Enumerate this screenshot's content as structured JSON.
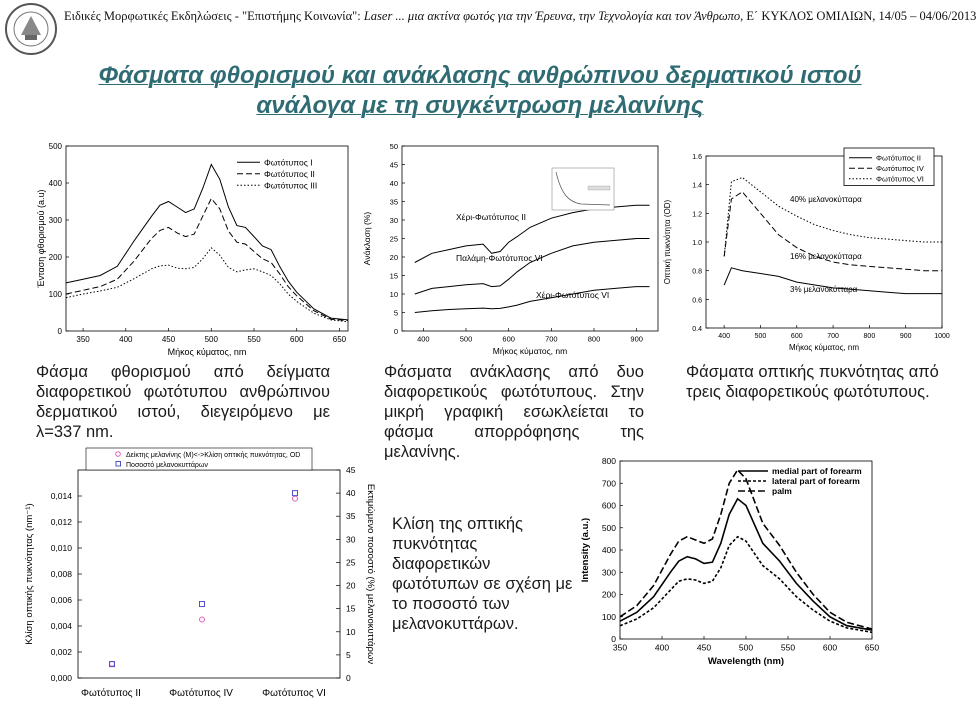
{
  "header": {
    "prefix": "Ειδικές Μορφωτικές Εκδηλώσεις - \"Επιστήμης Κοινωνία\": ",
    "italic": "Laser ... μια ακτίνα φωτός για την Έρευνα, την Τεχνολογία και τον Άνθρωπο",
    "suffix": ", Ε΄ ΚΥΚΛΟΣ ΟΜΙΛΙΩΝ, 14/05 – 04/06/2013"
  },
  "title": {
    "line1": "Φάσματα φθορισμού και ανάκλασης ανθρώπινου δερματικού ιστού",
    "line2": "ανάλογα με τη συγκέντρωση μελανίνης"
  },
  "captions": {
    "fluorescence": "Φάσμα φθορισμού από δείγματα διαφορετικού φωτότυπου ανθρώπινου δερματικού ιστού, διεγειρόμενο με λ=337 nm.",
    "reflectance": "Φάσματα ανάκλασης από δυο διαφορετικούς φωτότυπους. Στην μικρή γραφική εσωκλείεται το φάσμα απορρόφησης της μελανίνης.",
    "optical_density": "Φάσματα οπτικής πυκνότητας από τρεις διαφορετικούς φωτότυπους.",
    "slope": "Κλίση της οπτικής πυκνότητας διαφορετικών φωτότυπων σε σχέση με το ποσοστό των μελανοκυττάρων."
  },
  "colors": {
    "title": "#2e6b73",
    "marker_pink": "#e060b8",
    "marker_blue": "#5050c8",
    "line": "#000000"
  },
  "chart_data": [
    {
      "type": "line",
      "ylabel": "Ένταση φθορισμού (a.u)",
      "xlabel": "Μήκος κύματος, nm",
      "xlim": [
        330,
        660
      ],
      "ylim": [
        0,
        500
      ],
      "xticks": [
        350,
        400,
        450,
        500,
        550,
        600,
        650
      ],
      "yticks": [
        0,
        100,
        200,
        300,
        400,
        500
      ],
      "legend": "top-right",
      "series": [
        {
          "name": "Φωτότυπος Ι",
          "style": "solid",
          "x": [
            330,
            350,
            370,
            390,
            410,
            430,
            440,
            450,
            460,
            470,
            480,
            490,
            500,
            510,
            520,
            530,
            540,
            550,
            560,
            570,
            580,
            590,
            600,
            620,
            640,
            660
          ],
          "y": [
            130,
            140,
            150,
            175,
            245,
            310,
            340,
            350,
            335,
            320,
            330,
            385,
            450,
            410,
            335,
            285,
            280,
            255,
            230,
            220,
            175,
            135,
            105,
            60,
            35,
            30
          ]
        },
        {
          "name": "Φωτότυπος ΙΙ",
          "style": "dashed",
          "x": [
            330,
            350,
            370,
            390,
            410,
            430,
            440,
            450,
            460,
            470,
            480,
            490,
            500,
            510,
            520,
            530,
            540,
            550,
            560,
            570,
            580,
            590,
            600,
            620,
            640,
            660
          ],
          "y": [
            100,
            110,
            120,
            140,
            190,
            250,
            272,
            280,
            265,
            255,
            262,
            310,
            358,
            330,
            270,
            240,
            235,
            215,
            195,
            185,
            155,
            120,
            95,
            55,
            32,
            28
          ]
        },
        {
          "name": "Φωτότυπος ΙΙΙ",
          "style": "dotted",
          "x": [
            330,
            350,
            370,
            390,
            410,
            430,
            440,
            450,
            460,
            470,
            480,
            490,
            500,
            510,
            520,
            530,
            540,
            550,
            560,
            570,
            580,
            590,
            600,
            620,
            640,
            660
          ],
          "y": [
            90,
            100,
            108,
            118,
            142,
            168,
            176,
            178,
            170,
            168,
            172,
            195,
            225,
            205,
            172,
            160,
            165,
            168,
            160,
            150,
            128,
            100,
            80,
            48,
            30,
            25
          ]
        }
      ]
    },
    {
      "type": "line",
      "ylabel": "Ανάκλαση (%)",
      "xlabel": "Μήκος κύματος, nm",
      "xlim": [
        350,
        950
      ],
      "ylim": [
        0,
        50
      ],
      "xticks": [
        400,
        500,
        600,
        700,
        800,
        900
      ],
      "yticks": [
        0,
        5,
        10,
        15,
        20,
        25,
        30,
        35,
        40,
        45,
        50
      ],
      "annotations": [
        "Χέρι-Φωτότυπος ΙΙ",
        "Παλάμη-Φωτότυπος VI",
        "Χέρι-Φωτότυπος VI"
      ],
      "series": [
        {
          "name": "Χέρι-Φωτότυπος ΙΙ",
          "style": "solid",
          "x": [
            380,
            420,
            460,
            500,
            540,
            560,
            580,
            600,
            620,
            650,
            700,
            750,
            800,
            850,
            900,
            930
          ],
          "y": [
            18.5,
            21,
            22,
            23,
            23.5,
            21,
            21.5,
            24,
            25.5,
            28,
            30.5,
            32,
            33,
            33.5,
            34,
            34
          ]
        },
        {
          "name": "Παλάμη-Φωτότυπος VI",
          "style": "solid",
          "x": [
            380,
            420,
            460,
            500,
            540,
            560,
            580,
            600,
            620,
            650,
            700,
            750,
            800,
            850,
            900,
            930
          ],
          "y": [
            10,
            11.5,
            12,
            12.5,
            12.8,
            12,
            12.2,
            14,
            16,
            18.5,
            21,
            23,
            24,
            24.5,
            25,
            25
          ]
        },
        {
          "name": "Χέρι-Φωτότυπος VI",
          "style": "solid",
          "x": [
            380,
            420,
            460,
            500,
            540,
            560,
            580,
            600,
            620,
            650,
            700,
            750,
            800,
            850,
            900,
            930
          ],
          "y": [
            5,
            5.5,
            5.8,
            6,
            6.2,
            6,
            6.1,
            6.5,
            7,
            8,
            9,
            10,
            11,
            11.5,
            12,
            12
          ]
        }
      ]
    },
    {
      "type": "line",
      "ylabel": "Οπτική πυκνότητα (OD)",
      "xlabel": "Μήκος κύματος, nm",
      "xlim": [
        350,
        1000
      ],
      "ylim": [
        0.4,
        1.6
      ],
      "xticks": [
        400,
        500,
        600,
        700,
        800,
        900,
        1000
      ],
      "yticks": [
        0.4,
        0.6,
        0.8,
        1.0,
        1.2,
        1.4,
        1.6
      ],
      "legend": "top-right",
      "annotations": [
        "40% μελανοκύτταρα",
        "16% μελανοκύτταρα",
        "3% μελανοκύτταρα"
      ],
      "series": [
        {
          "name": "Φωτότυπος ΙΙ",
          "style": "solid",
          "x": [
            400,
            420,
            450,
            500,
            550,
            600,
            650,
            700,
            750,
            800,
            850,
            900,
            950,
            1000
          ],
          "y": [
            0.7,
            0.82,
            0.8,
            0.78,
            0.76,
            0.72,
            0.7,
            0.68,
            0.67,
            0.66,
            0.65,
            0.64,
            0.64,
            0.64
          ]
        },
        {
          "name": "Φωτότυπος ΙV",
          "style": "dashed",
          "x": [
            400,
            420,
            450,
            500,
            550,
            600,
            650,
            700,
            750,
            800,
            850,
            900,
            950,
            1000
          ],
          "y": [
            0.9,
            1.3,
            1.35,
            1.2,
            1.05,
            0.96,
            0.9,
            0.86,
            0.84,
            0.83,
            0.82,
            0.81,
            0.8,
            0.8
          ]
        },
        {
          "name": "Φωτότυπος VI",
          "style": "dotted",
          "x": [
            400,
            420,
            450,
            500,
            550,
            600,
            650,
            700,
            750,
            800,
            850,
            900,
            950,
            1000
          ],
          "y": [
            0.9,
            1.42,
            1.45,
            1.35,
            1.25,
            1.18,
            1.12,
            1.08,
            1.05,
            1.03,
            1.02,
            1.01,
            1.0,
            1.0
          ]
        }
      ]
    },
    {
      "type": "scatter",
      "ylabel": "Κλίση οπτικής πυκνότητας (nm⁻¹)",
      "y2label": "Εκτιμώμενο ποσοστό (%) μελανοκυττάρων",
      "categories": [
        "Φωτότυπος ΙΙ",
        "Φωτότυπος ΙV",
        "Φωτότυπος VI"
      ],
      "ylim": [
        0,
        0.016
      ],
      "y2lim": [
        0,
        45
      ],
      "yticks": [
        "0,000",
        "0,002",
        "0,004",
        "0,006",
        "0,008",
        "0,010",
        "0,012",
        "0,014"
      ],
      "y2ticks": [
        0,
        5,
        10,
        15,
        20,
        25,
        30,
        35,
        40,
        45
      ],
      "legend": "top",
      "series": [
        {
          "name": "Δείκτης μελανίνης (Μ)<->Κλίση οπτικής πυκνότητας, OD",
          "marker": "circle",
          "axis": "left",
          "values": [
            0.0011,
            0.0045,
            0.0138
          ]
        },
        {
          "name": "Ποσοστό μελανοκυττάρων",
          "marker": "square",
          "axis": "right",
          "values": [
            3,
            16,
            40
          ]
        }
      ]
    },
    {
      "type": "line",
      "ylabel": "Intensity (a.u.)",
      "xlabel": "Wavelength (nm)",
      "xlim": [
        350,
        650
      ],
      "ylim": [
        0,
        800
      ],
      "xticks": [
        350,
        400,
        450,
        500,
        550,
        600,
        650
      ],
      "yticks": [
        0,
        100,
        200,
        300,
        400,
        500,
        600,
        700,
        800
      ],
      "legend": "top-right",
      "series": [
        {
          "name": "medial part of forearm",
          "style": "solid",
          "x": [
            350,
            370,
            390,
            410,
            420,
            430,
            440,
            450,
            460,
            470,
            480,
            490,
            500,
            520,
            540,
            560,
            580,
            600,
            620,
            650
          ],
          "y": [
            80,
            120,
            190,
            300,
            350,
            370,
            360,
            340,
            345,
            430,
            560,
            630,
            600,
            430,
            350,
            250,
            170,
            100,
            60,
            40
          ]
        },
        {
          "name": "lateral part of forearm",
          "style": "dashed",
          "x": [
            350,
            370,
            390,
            410,
            420,
            430,
            440,
            450,
            460,
            470,
            480,
            490,
            500,
            520,
            540,
            560,
            580,
            600,
            620,
            650
          ],
          "y": [
            60,
            90,
            140,
            220,
            260,
            270,
            265,
            250,
            260,
            320,
            420,
            460,
            440,
            330,
            270,
            190,
            130,
            80,
            50,
            30
          ]
        },
        {
          "name": "palm",
          "style": "dashed",
          "x": [
            350,
            370,
            390,
            410,
            420,
            430,
            440,
            450,
            460,
            470,
            480,
            490,
            500,
            520,
            540,
            560,
            580,
            600,
            620,
            650
          ],
          "y": [
            100,
            150,
            240,
            380,
            440,
            460,
            445,
            430,
            450,
            560,
            700,
            760,
            720,
            520,
            420,
            300,
            200,
            120,
            75,
            45
          ]
        }
      ]
    }
  ]
}
